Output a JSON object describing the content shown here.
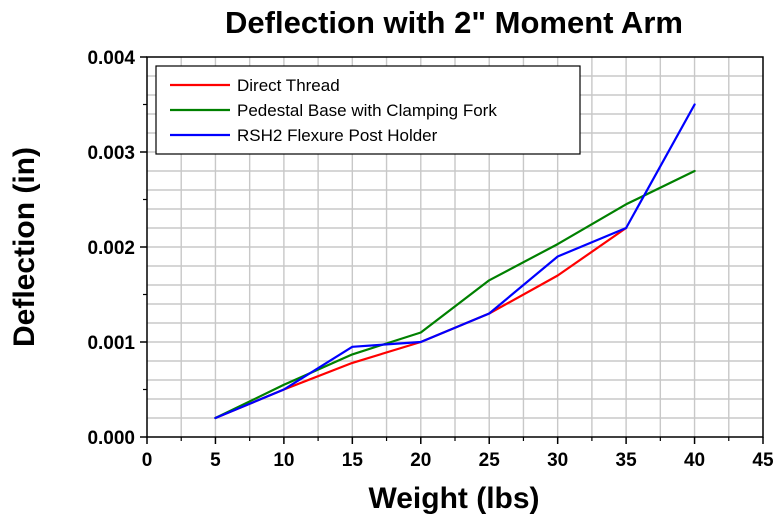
{
  "chart_data": {
    "type": "line",
    "title": "Deflection with 2\" Moment Arm",
    "xlabel": "Weight (lbs)",
    "ylabel": "Deflection (in)",
    "xlim": [
      0,
      45
    ],
    "ylim": [
      0,
      0.004
    ],
    "xticks": [
      0,
      5,
      10,
      15,
      20,
      25,
      30,
      35,
      40,
      45
    ],
    "xtick_labels": [
      "0",
      "5",
      "10",
      "15",
      "20",
      "25",
      "30",
      "35",
      "40",
      "45"
    ],
    "yticks": [
      0,
      0.001,
      0.002,
      0.003,
      0.004
    ],
    "ytick_labels": [
      "0.000",
      "0.001",
      "0.002",
      "0.003",
      "0.004"
    ],
    "grid": true,
    "legend_position": "top-left",
    "series": [
      {
        "name": "Direct Thread",
        "color": "#ff0000",
        "x": [
          5,
          10,
          15,
          20,
          25,
          30,
          35
        ],
        "y": [
          0.0002,
          0.0005,
          0.00078,
          0.001,
          0.0013,
          0.0017,
          0.0022
        ]
      },
      {
        "name": "Pedestal Base with Clamping Fork",
        "color": "#008000",
        "x": [
          5,
          10,
          15,
          20,
          25,
          30,
          35,
          40
        ],
        "y": [
          0.0002,
          0.00055,
          0.00087,
          0.0011,
          0.00165,
          0.00203,
          0.00245,
          0.0028
        ]
      },
      {
        "name": "RSH2 Flexure Post Holder",
        "color": "#0000ff",
        "x": [
          5,
          10,
          15,
          20,
          25,
          30,
          35,
          40
        ],
        "y": [
          0.0002,
          0.0005,
          0.00095,
          0.001,
          0.0013,
          0.0019,
          0.0022,
          0.0035
        ]
      }
    ]
  }
}
